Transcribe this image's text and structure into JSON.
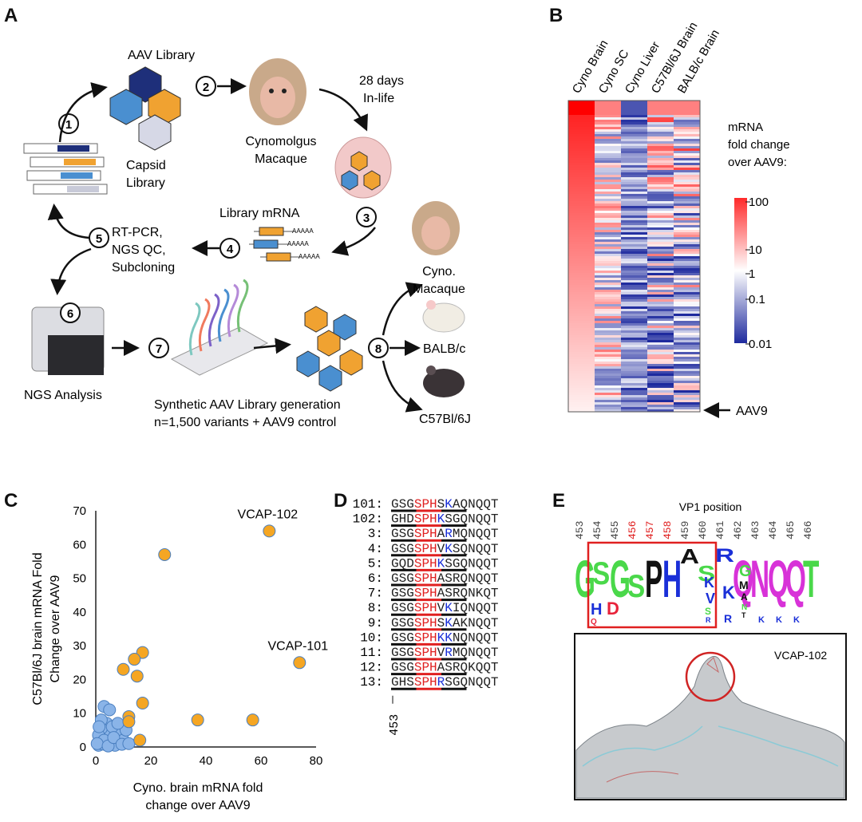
{
  "panels": {
    "A": {
      "letter": "A",
      "aav_library_label": "AAV Library",
      "capsid_library_label": [
        "Capsid",
        "Library"
      ],
      "cyno_label": [
        "Cynomolgus",
        "Macaque"
      ],
      "in_life_label": [
        "28 days",
        "In-life"
      ],
      "library_mrna_label": "Library mRNA",
      "polya": "AAAAA",
      "rtpcr_label": [
        "RT-PCR,",
        "NGS QC,",
        "Subcloning"
      ],
      "ngs_label": "NGS Analysis",
      "synth_label": [
        "Synthetic AAV Library generation",
        "n=1,500 variants + AAV9 control"
      ],
      "targets": [
        "Cyno.",
        "Macaque",
        "BALB/c",
        "C57Bl/6J"
      ],
      "steps": [
        "1",
        "2",
        "3",
        "4",
        "5",
        "6",
        "7",
        "8"
      ]
    },
    "B": {
      "letter": "B",
      "columns": [
        "Cyno Brain",
        "Cyno SC",
        "Cyno Liver",
        "C57Bl/6J Brain",
        "BALB/c Brain"
      ],
      "legend_title": [
        "mRNA",
        "fold change",
        "over AAV9:"
      ],
      "legend_ticks": [
        "100",
        "10",
        "1",
        "0.1",
        "0.01"
      ],
      "aav9_label": "AAV9",
      "colors": {
        "high": "#ff2a2a",
        "mid": "#ffffff",
        "low": "#1e2a9e"
      }
    },
    "C": {
      "letter": "C"
    },
    "D": {
      "letter": "D",
      "axis_label": "453",
      "rows": [
        {
          "id": "101:",
          "seq": "GSGSPHSKAQNQQT"
        },
        {
          "id": "102:",
          "seq": "GHDSPHKSGQNQQT"
        },
        {
          "id": "3:",
          "seq": "GSGSPHARMQNQQT"
        },
        {
          "id": "4:",
          "seq": "GSGSPHVKSQNQQT"
        },
        {
          "id": "5:",
          "seq": "GQDSPHKSGQNQQT"
        },
        {
          "id": "6:",
          "seq": "GSGSPHASRQNQQT"
        },
        {
          "id": "7:",
          "seq": "GSGSPHASRQNKQT"
        },
        {
          "id": "8:",
          "seq": "GSGSPHVKIQNQQT"
        },
        {
          "id": "9:",
          "seq": "GSGSPHSKAKNQQT"
        },
        {
          "id": "10:",
          "seq": "GSGSPHKKNQNQQT"
        },
        {
          "id": "11:",
          "seq": "GSGSPHVRMQNQQT"
        },
        {
          "id": "12:",
          "seq": "GSGSPHASRQKQQT"
        },
        {
          "id": "13:",
          "seq": "GHSSPHRSGQNQQT"
        }
      ]
    },
    "E": {
      "letter": "E",
      "title": "VP1 position",
      "positions": [
        "453",
        "454",
        "455",
        "456",
        "457",
        "458",
        "459",
        "460",
        "461",
        "462",
        "463",
        "464",
        "465",
        "466"
      ],
      "red_positions": [
        "456",
        "457",
        "458"
      ],
      "logo_main": [
        "G",
        "S",
        "G",
        "S",
        "P",
        "H",
        "A",
        "S",
        "R",
        "Q",
        "N",
        "Q",
        "Q",
        "T"
      ],
      "structure_label": "VCAP-102"
    }
  },
  "chart_data": {
    "type": "scatter",
    "xlabel": "Cyno. brain mRNA fold change over AAV9",
    "ylabel": "C57Bl/6J brain mRNA Fold Change over AAV9",
    "xlim": [
      0,
      80
    ],
    "ylim": [
      0,
      70
    ],
    "xticks": [
      "0",
      "20",
      "40",
      "60",
      "80"
    ],
    "yticks": [
      "0",
      "10",
      "20",
      "30",
      "40",
      "50",
      "60",
      "70"
    ],
    "grid": false,
    "annotations": [
      {
        "text": "VCAP-102",
        "x": 63,
        "y": 64
      },
      {
        "text": "VCAP-101",
        "x": 74,
        "y": 25
      }
    ],
    "series": [
      {
        "color": "#f5a623",
        "points": [
          [
            63,
            64
          ],
          [
            74,
            25
          ],
          [
            25,
            57
          ],
          [
            17,
            28
          ],
          [
            14,
            26
          ],
          [
            10,
            23
          ],
          [
            15,
            21
          ],
          [
            17,
            13
          ],
          [
            12,
            9
          ],
          [
            12,
            7.5
          ],
          [
            37,
            8
          ],
          [
            57,
            8
          ],
          [
            16,
            2
          ]
        ]
      },
      {
        "color": "#8ab4e8",
        "points": [
          [
            1,
            0.5
          ],
          [
            2,
            1
          ],
          [
            3,
            0.8
          ],
          [
            1.5,
            2
          ],
          [
            2.5,
            3
          ],
          [
            4,
            1.5
          ],
          [
            5,
            2.5
          ],
          [
            6,
            1
          ],
          [
            3.5,
            4
          ],
          [
            5,
            5
          ],
          [
            7,
            3
          ],
          [
            8,
            1.5
          ],
          [
            4,
            7
          ],
          [
            9,
            4
          ],
          [
            2,
            5.5
          ],
          [
            1,
            3.5
          ],
          [
            6,
            6
          ],
          [
            3,
            2
          ],
          [
            7,
            0.5
          ],
          [
            10,
            2
          ],
          [
            11,
            5
          ],
          [
            3,
            12
          ],
          [
            5,
            11
          ],
          [
            2,
            8
          ],
          [
            8,
            7
          ],
          [
            0.5,
            1
          ],
          [
            4.5,
            0.3
          ],
          [
            6.5,
            2.8
          ],
          [
            9.5,
            0.8
          ],
          [
            1.2,
            6
          ],
          [
            12,
            1
          ]
        ]
      }
    ]
  }
}
